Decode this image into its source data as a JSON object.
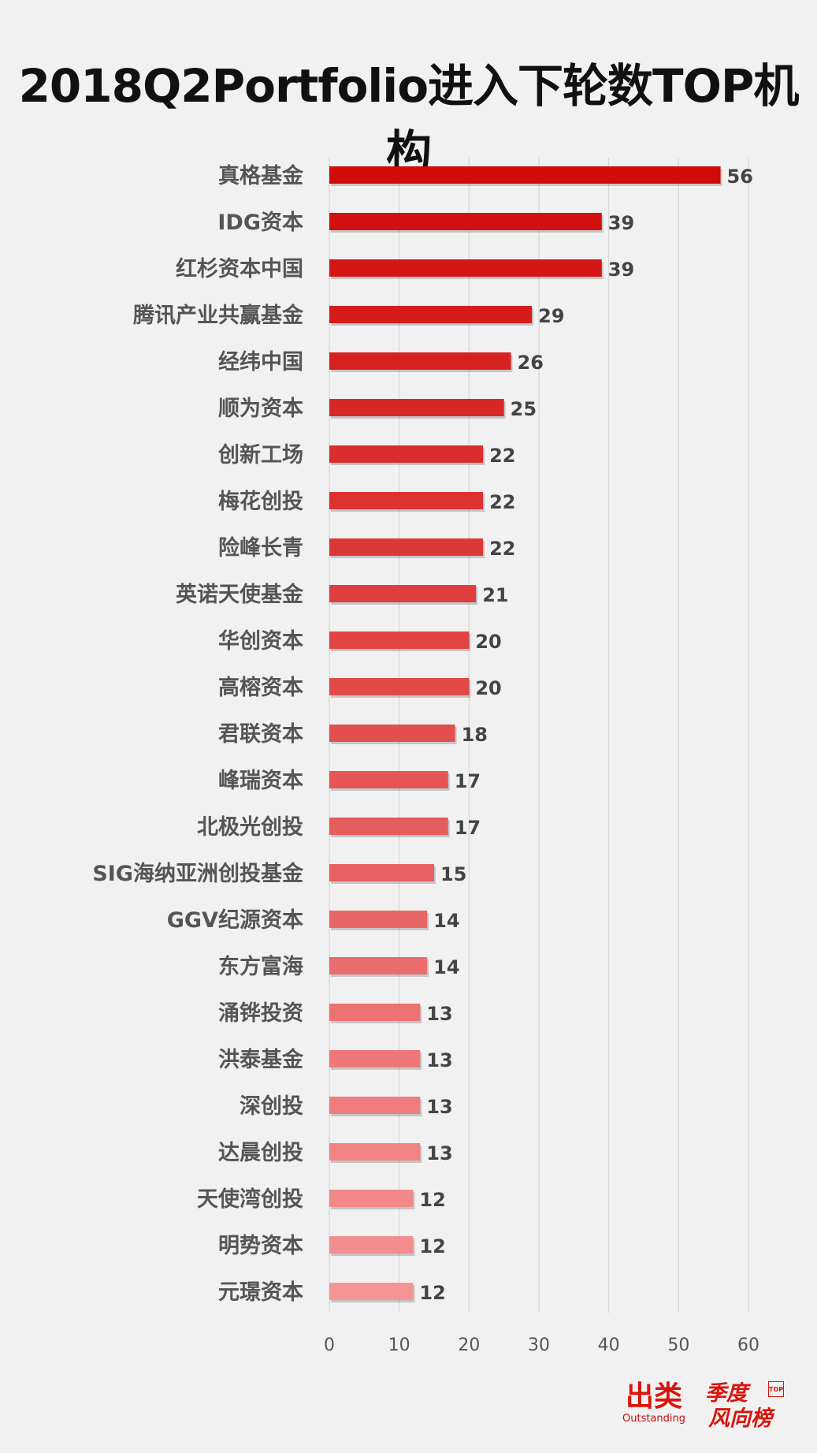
{
  "chart_data": {
    "type": "bar",
    "orientation": "horizontal",
    "title": "2018Q2Portfolio进入下轮数TOP机构",
    "categories": [
      "真格基金",
      "IDG资本",
      "红杉资本中国",
      "腾讯产业共赢基金",
      "经纬中国",
      "顺为资本",
      "创新工场",
      "梅花创投",
      "险峰长青",
      "英诺天使基金",
      "华创资本",
      "高榕资本",
      "君联资本",
      "峰瑞资本",
      "北极光创投",
      "SIG海纳亚洲创投基金",
      "GGV纪源资本",
      "东方富海",
      "涌铧投资",
      "洪泰基金",
      "深创投",
      "达晨创投",
      "天使湾创投",
      "明势资本",
      "元璟资本"
    ],
    "values": [
      56,
      39,
      39,
      29,
      26,
      25,
      22,
      22,
      22,
      21,
      20,
      20,
      18,
      17,
      17,
      15,
      14,
      14,
      13,
      13,
      13,
      13,
      12,
      12,
      12
    ],
    "xlim": [
      0,
      60
    ],
    "xticks": [
      0,
      10,
      20,
      30,
      40,
      50,
      60
    ],
    "grid": true,
    "legend": "none",
    "colors": {
      "bar_top": "#d10a0a",
      "bar_bottom": "#f59494",
      "value_text": "#444444"
    }
  },
  "footer": {
    "brand_cn": "出类",
    "brand_en": "Outstanding",
    "badge_line1": "季度",
    "badge_line2": "风向榜",
    "badge_top": "TOP"
  }
}
